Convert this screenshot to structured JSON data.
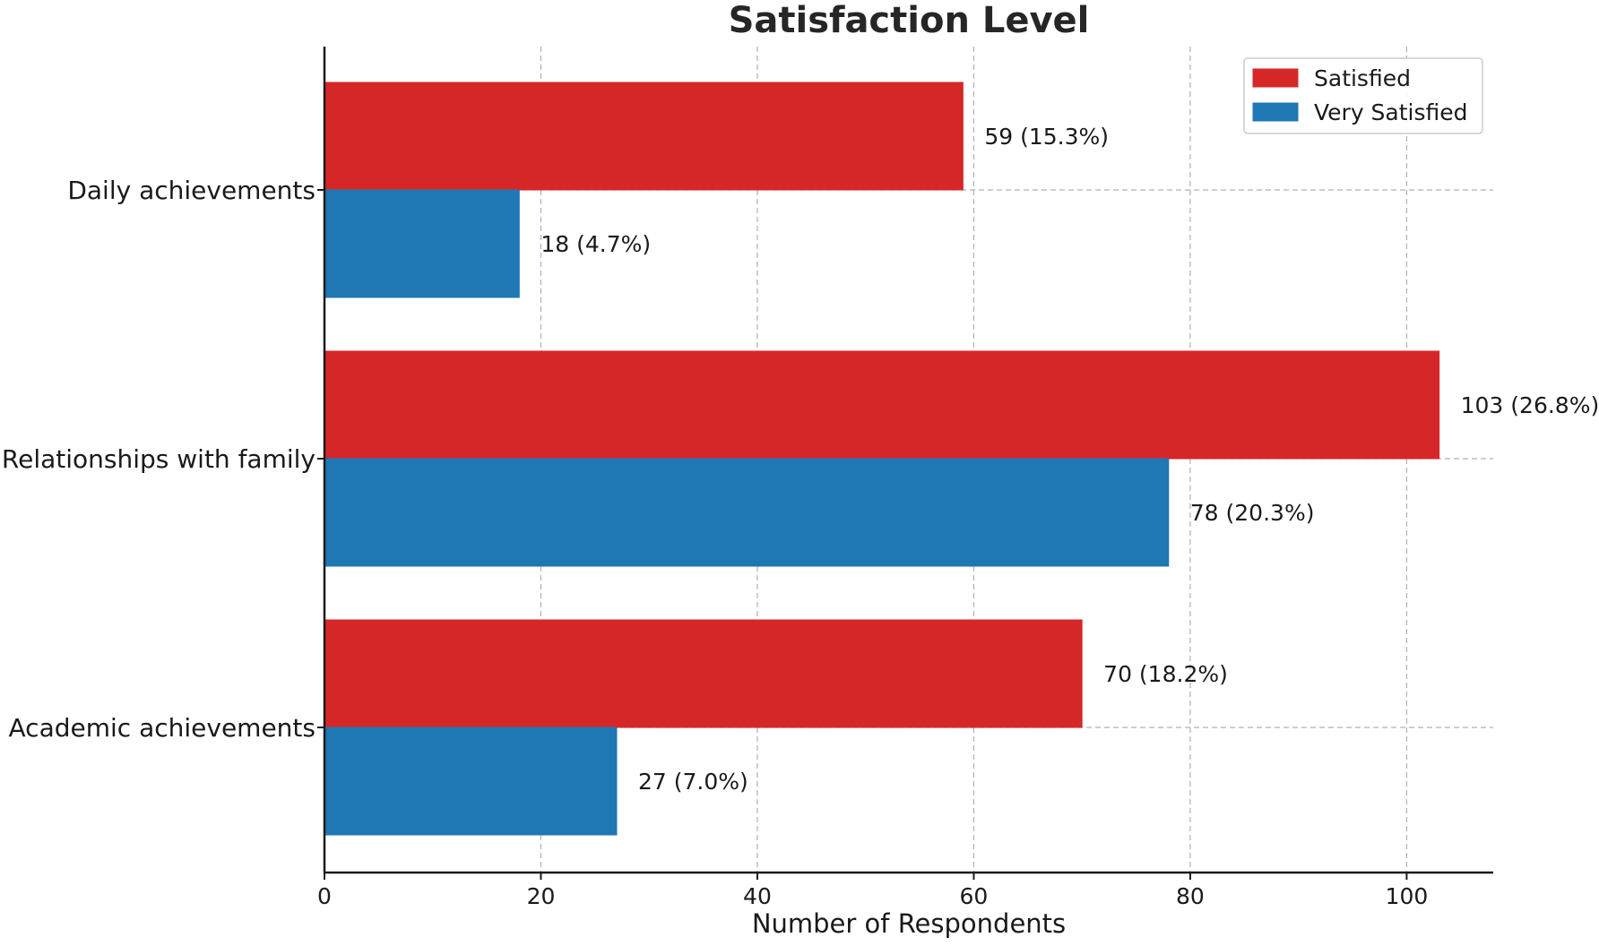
{
  "chart_data": {
    "type": "bar",
    "orientation": "horizontal",
    "title": "Satisfaction Level",
    "xlabel": "Number of Respondents",
    "ylabel": "",
    "xlim": [
      0,
      108
    ],
    "xticks": [
      0,
      20,
      40,
      60,
      80,
      100
    ],
    "grid": true,
    "legend_position": "top-right",
    "categories": [
      "Daily achievements",
      "Relationships with family",
      "Academic achievements"
    ],
    "series": [
      {
        "name": "Satisfied",
        "color": "#d62728",
        "values": [
          59,
          103,
          70
        ],
        "labels": [
          "59 (15.3%)",
          "103 (26.8%)",
          "70 (18.2%)"
        ]
      },
      {
        "name": "Very Satisfied",
        "color": "#1f77b4",
        "values": [
          18,
          78,
          27
        ],
        "labels": [
          "18 (4.7%)",
          "78 (20.3%)",
          "27 (7.0%)"
        ]
      }
    ]
  }
}
